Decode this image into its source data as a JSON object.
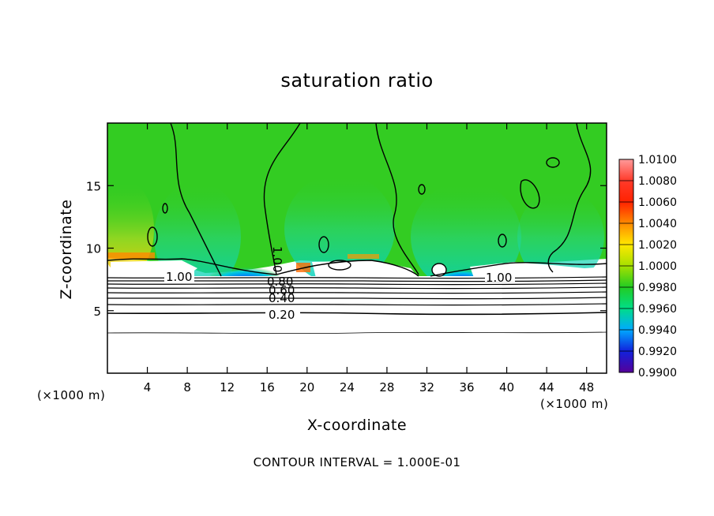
{
  "chart_data": {
    "type": "heatmap",
    "title": "saturation ratio",
    "xlabel": "X-coordinate",
    "ylabel": "Z-coordinate",
    "x_unit": "(×1000 m)",
    "x_unit_right": "(×1000 m)",
    "xlim": [
      0,
      50
    ],
    "ylim": [
      0,
      20
    ],
    "x_ticks": [
      4,
      8,
      12,
      16,
      20,
      24,
      28,
      32,
      36,
      40,
      44,
      48
    ],
    "y_ticks": [
      5,
      10,
      15
    ],
    "colorbar": {
      "min": 0.99,
      "max": 1.01,
      "labels": [
        "1.0100",
        "1.0080",
        "1.0060",
        "1.0040",
        "1.0020",
        "1.0000",
        "0.9980",
        "0.9960",
        "0.9940",
        "0.9920",
        "0.9900"
      ]
    },
    "contour_labels": [
      "1.00",
      "1.00",
      "1.00",
      "0.80",
      "0.60",
      "0.40",
      "0.20"
    ],
    "contour_levels": [
      0.2,
      0.3,
      0.4,
      0.5,
      0.6,
      0.7,
      0.8,
      0.9
    ],
    "contour_interval_text": "CONTOUR INTERVAL = 1.000E-01"
  },
  "colors": {
    "background_green": "#33cc22",
    "subsaturated": "#ffffff",
    "low_values": [
      "#0000aa",
      "#0055ff",
      "#00bbdd"
    ],
    "high_values": [
      "#ffe000",
      "#ff8800",
      "#ff2200"
    ]
  }
}
